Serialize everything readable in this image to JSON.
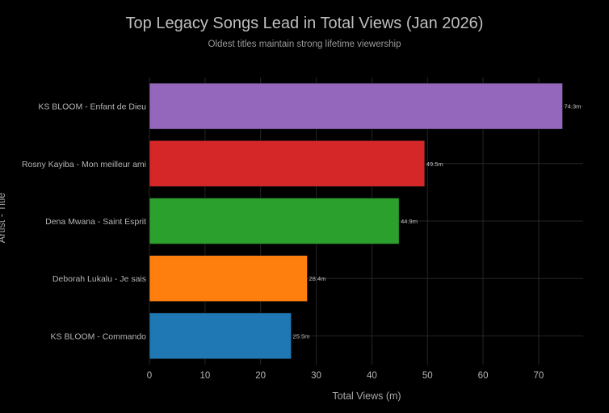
{
  "chart_data": {
    "type": "bar",
    "orientation": "horizontal",
    "title": "Top Legacy Songs Lead in Total Views (Jan 2026)",
    "subtitle": "Oldest titles maintain strong lifetime viewership",
    "xlabel": "Total Views (m)",
    "ylabel": "Artist - Title",
    "xlim": [
      0,
      78
    ],
    "xticks": [
      0,
      10,
      20,
      30,
      40,
      50,
      60,
      70
    ],
    "grid": true,
    "legend": "none",
    "categories": [
      "KS BLOOM - Enfant de Dieu",
      "Rosny Kayiba - Mon meilleur ami",
      "Dena Mwana - Saint Esprit",
      "Deborah Lukalu - Je sais",
      "KS BLOOM - Commando"
    ],
    "values": [
      74.3,
      49.5,
      44.9,
      28.4,
      25.5
    ],
    "data_labels": [
      "74.3m",
      "49.5m",
      "44.9m",
      "28.4m",
      "25.5m"
    ],
    "colors": [
      "#9467bd",
      "#d62728",
      "#2ca02c",
      "#ff7f0e",
      "#1f77b4"
    ],
    "background": "#000000"
  }
}
